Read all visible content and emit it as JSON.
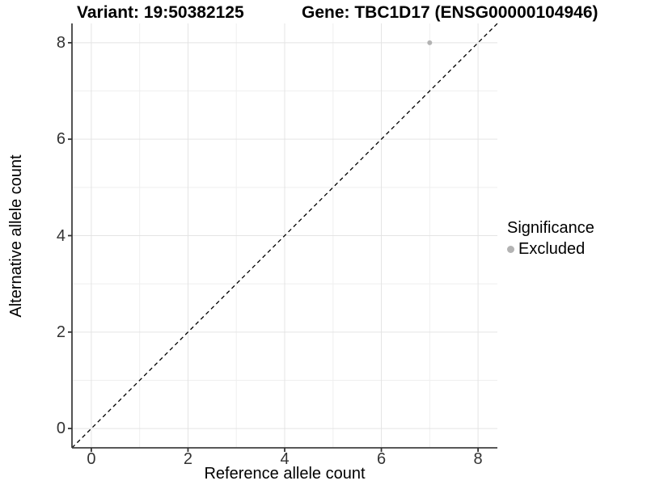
{
  "titles": {
    "left": "Variant: 19:50382125",
    "right": "Gene: TBC1D17 (ENSG00000104946)"
  },
  "legend": {
    "title": "Significance",
    "items": [
      {
        "label": "Excluded",
        "color": "#b3b3b3",
        "marker": "circle"
      }
    ]
  },
  "colors": {
    "point": "#b3b3b3",
    "grid_major": "#e4e4e4",
    "grid_minor": "#efefef",
    "axis_line": "#404040",
    "tick_mark": "#333333",
    "reference_line": "#000000"
  },
  "chart_data": {
    "type": "scatter",
    "title": "Variant: 19:50382125    Gene: TBC1D17 (ENSG00000104946)",
    "xlabel": "Reference allele count",
    "ylabel": "Alternative allele count",
    "xlim": [
      -0.4,
      8.4
    ],
    "ylim": [
      -0.4,
      8.4
    ],
    "x_ticks": [
      0,
      2,
      4,
      6,
      8
    ],
    "y_ticks": [
      0,
      2,
      4,
      6,
      8
    ],
    "x_minor_ticks": [
      1,
      3,
      5,
      7
    ],
    "y_minor_ticks": [
      1,
      3,
      5,
      7
    ],
    "grid": "major+minor",
    "legend_position": "right",
    "series": [
      {
        "name": "Excluded",
        "color": "#b3b3b3",
        "points": [
          {
            "x": 7,
            "y": 8
          }
        ]
      }
    ],
    "reference_line": {
      "equation": "y = x",
      "style": "dashed",
      "from": [
        -0.4,
        -0.4
      ],
      "to": [
        8.4,
        8.4
      ]
    }
  }
}
